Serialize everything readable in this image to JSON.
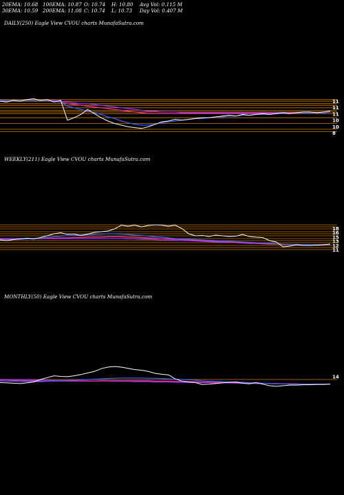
{
  "header": {
    "row1": [
      "20EMA: 10.68",
      "100EMA: 10.87",
      "O: 10.74",
      "H: 10.80",
      "Avg Vol: 0.115 M"
    ],
    "row2": [
      "30EMA: 10.59",
      "200EMA: 11.08",
      "C: 10.74",
      "L: 10.73",
      "Day Vol: 0.407 M"
    ]
  },
  "panels": {
    "daily": {
      "label": "DAILY(250) Eagle  View  CVOU charts MunafaSutra.com",
      "ticks": [
        "11",
        "11",
        "11",
        "10",
        "10",
        "8"
      ]
    },
    "weekly": {
      "label": "WEEKLY(211) Eagle  View  CVOU charts MunafaSutra.com",
      "ticks": [
        "18",
        "16",
        "15",
        "13",
        "12",
        "11"
      ]
    },
    "monthly": {
      "label": "MONTHLY(50) Eagle  View  CVOU charts MunafaSutra.com",
      "ticks": [
        "14"
      ]
    }
  },
  "colors": {
    "price": "#ffffff",
    "ema_fast": "#3366ff",
    "ema_slow": "#ff3399",
    "ema_long": "#9933ff",
    "level": "#cc7a00"
  },
  "chart_data": [
    {
      "type": "line",
      "panel": "daily",
      "ylim": [
        7,
        12
      ],
      "levels": [
        11.6,
        11.4,
        11.1,
        10.9,
        10.6,
        10.3,
        10.1,
        9.9,
        9.4,
        8.7,
        8.0,
        7.7
      ],
      "series": [
        {
          "key": "price",
          "values": [
            11.4,
            11.3,
            11.5,
            11.4,
            11.6,
            11.7,
            11.5,
            11.6,
            11.3,
            11.5,
            9.1,
            9.4,
            9.8,
            10.4,
            9.9,
            9.4,
            9.0,
            8.7,
            8.5,
            8.3,
            8.2,
            8.1,
            8.3,
            8.6,
            8.9,
            9.0,
            9.2,
            9.1,
            9.2,
            9.3,
            9.4,
            9.4,
            9.5,
            9.6,
            9.7,
            9.6,
            9.8,
            9.7,
            9.8,
            9.9,
            9.8,
            9.9,
            10.0,
            9.9,
            10.0,
            10.1,
            10.1,
            10.0,
            10.1,
            10.2
          ]
        },
        {
          "key": "ema_fast",
          "values": [
            11.5,
            11.5,
            11.5,
            11.5,
            11.5,
            11.5,
            11.5,
            11.5,
            11.4,
            11.3,
            10.8,
            10.6,
            10.4,
            10.2,
            10.0,
            9.8,
            9.5,
            9.3,
            9.0,
            8.8,
            8.6,
            8.5,
            8.5,
            8.6,
            8.8,
            8.9,
            9.0,
            9.1,
            9.2,
            9.3,
            9.3,
            9.4,
            9.5,
            9.5,
            9.6,
            9.6,
            9.7,
            9.7,
            9.8,
            9.8,
            9.8,
            9.9,
            9.9,
            9.9,
            10.0,
            10.0,
            10.0,
            10.0,
            10.0,
            10.1
          ]
        },
        {
          "key": "ema_slow",
          "values": [
            11.5,
            11.5,
            11.5,
            11.5,
            11.5,
            11.5,
            11.5,
            11.5,
            11.4,
            11.3,
            11.1,
            11.0,
            10.9,
            10.8,
            10.7,
            10.6,
            10.5,
            10.4,
            10.3,
            10.2,
            10.1,
            10.0,
            9.9,
            9.9,
            9.9,
            9.9,
            9.9,
            9.9,
            9.9,
            9.9,
            9.9,
            9.9,
            9.9,
            9.9,
            9.9,
            9.9,
            9.9,
            9.9,
            9.9,
            9.9,
            9.9,
            9.9,
            10.0,
            10.0,
            10.0,
            10.0,
            10.0,
            10.0,
            10.0,
            10.1
          ]
        },
        {
          "key": "ema_long",
          "values": [
            11.5,
            11.5,
            11.5,
            11.5,
            11.5,
            11.5,
            11.5,
            11.5,
            11.5,
            11.4,
            11.3,
            11.2,
            11.1,
            11.1,
            11.0,
            10.9,
            10.8,
            10.7,
            10.6,
            10.5,
            10.4,
            10.3,
            10.2,
            10.2,
            10.1,
            10.1,
            10.1,
            10.0,
            10.0,
            10.0,
            10.0,
            10.0,
            10.0,
            10.0,
            10.0,
            10.0,
            10.0,
            10.0,
            10.0,
            10.0,
            10.0,
            10.0,
            10.0,
            10.0,
            10.0,
            10.0,
            10.0,
            10.0,
            10.0,
            10.1
          ]
        }
      ]
    },
    {
      "type": "line",
      "panel": "weekly",
      "ylim": [
        10,
        19
      ],
      "levels": [
        18.6,
        18.0,
        17.4,
        16.6,
        16.0,
        15.4,
        14.6,
        14.0,
        13.4,
        12.6,
        12.0,
        11.4
      ],
      "series": [
        {
          "key": "price",
          "values": [
            14.2,
            14.0,
            14.3,
            14.5,
            14.7,
            14.5,
            14.9,
            15.4,
            16.0,
            16.3,
            15.8,
            15.9,
            15.5,
            15.9,
            16.4,
            16.6,
            16.8,
            17.4,
            18.5,
            18.2,
            18.5,
            18.0,
            18.4,
            18.6,
            18.5,
            18.2,
            18.5,
            17.5,
            16.0,
            15.4,
            15.5,
            15.2,
            15.6,
            15.4,
            15.2,
            15.3,
            15.8,
            15.2,
            15.0,
            14.9,
            14.0,
            13.6,
            12.2,
            12.4,
            12.8,
            12.6,
            12.6,
            12.7,
            12.8,
            13.0
          ]
        },
        {
          "key": "ema_fast",
          "values": [
            14.3,
            14.3,
            14.4,
            14.4,
            14.5,
            14.6,
            14.7,
            14.9,
            15.1,
            15.3,
            15.4,
            15.5,
            15.6,
            15.7,
            15.8,
            15.9,
            16.0,
            16.0,
            15.9,
            15.8,
            15.6,
            15.5,
            15.3,
            15.1,
            15.0,
            14.8,
            14.6,
            14.5,
            14.4,
            14.3,
            14.2,
            14.1,
            14.0,
            13.9,
            13.8,
            13.7,
            13.6,
            13.5,
            13.4,
            13.3,
            13.2,
            13.1,
            13.0,
            12.9,
            12.9,
            12.8,
            12.8,
            12.8,
            12.8,
            12.9
          ]
        },
        {
          "key": "ema_slow",
          "values": [
            14.5,
            14.5,
            14.5,
            14.5,
            14.6,
            14.6,
            14.6,
            14.7,
            14.7,
            14.8,
            14.8,
            14.9,
            14.9,
            15.0,
            15.0,
            15.0,
            15.1,
            15.1,
            15.1,
            15.0,
            15.0,
            14.9,
            14.8,
            14.7,
            14.6,
            14.5,
            14.4,
            14.3,
            14.2,
            14.1,
            14.0,
            13.9,
            13.8,
            13.7,
            13.6,
            13.5,
            13.4,
            13.3,
            13.2,
            13.1,
            13.0,
            13.0,
            12.9,
            12.9,
            12.8,
            12.8,
            12.8,
            12.8,
            12.8,
            12.9
          ]
        },
        {
          "key": "ema_long",
          "values": [
            14.6,
            14.6,
            14.6,
            14.6,
            14.6,
            14.6,
            14.6,
            14.6,
            14.6,
            14.6,
            14.6,
            14.6,
            14.6,
            14.6,
            14.6,
            14.6,
            14.6,
            14.6,
            14.6,
            14.5,
            14.5,
            14.4,
            14.4,
            14.3,
            14.2,
            14.2,
            14.1,
            14.0,
            14.0,
            13.9,
            13.8,
            13.7,
            13.6,
            13.5,
            13.5,
            13.4,
            13.3,
            13.2,
            13.2,
            13.1,
            13.0,
            13.0,
            12.9,
            12.9,
            12.9,
            12.8,
            12.8,
            12.8,
            12.8,
            12.9
          ]
        }
      ]
    },
    {
      "type": "line",
      "panel": "monthly",
      "ylim": [
        10,
        20
      ],
      "levels": [
        14.0
      ],
      "series": [
        {
          "key": "price",
          "values": [
            13.0,
            12.9,
            12.8,
            12.7,
            12.9,
            13.2,
            14.0,
            14.6,
            15.2,
            15.0,
            14.9,
            15.2,
            15.6,
            16.1,
            16.6,
            17.5,
            18.0,
            18.2,
            18.0,
            17.6,
            17.2,
            17.0,
            16.6,
            16.0,
            15.7,
            15.5,
            14.2,
            13.5,
            13.2,
            13.0,
            12.4,
            12.5,
            12.7,
            12.9,
            13.1,
            13.2,
            12.8,
            12.6,
            13.0,
            12.5,
            12.0,
            11.8,
            12.0,
            12.2,
            12.2,
            12.3,
            12.3,
            12.4,
            12.4,
            12.5
          ]
        },
        {
          "key": "ema_fast",
          "values": [
            13.5,
            13.4,
            13.4,
            13.3,
            13.3,
            13.3,
            13.3,
            13.4,
            13.5,
            13.6,
            13.7,
            13.8,
            13.9,
            14.0,
            14.1,
            14.2,
            14.3,
            14.4,
            14.5,
            14.5,
            14.5,
            14.5,
            14.4,
            14.4,
            14.3,
            14.2,
            14.1,
            14.0,
            13.9,
            13.8,
            13.6,
            13.5,
            13.4,
            13.3,
            13.2,
            13.2,
            13.1,
            13.0,
            12.9,
            12.8,
            12.7,
            12.6,
            12.6,
            12.5,
            12.5,
            12.5,
            12.5,
            12.5,
            12.5,
            12.5
          ]
        },
        {
          "key": "ema_slow",
          "values": [
            13.8,
            13.8,
            13.7,
            13.7,
            13.6,
            13.6,
            13.5,
            13.5,
            13.5,
            13.5,
            13.5,
            13.5,
            13.5,
            13.5,
            13.5,
            13.6,
            13.6,
            13.6,
            13.6,
            13.6,
            13.6,
            13.6,
            13.6,
            13.5,
            13.5,
            13.5,
            13.4,
            13.4,
            13.3,
            13.3,
            13.2,
            13.2,
            13.1,
            13.1,
            13.0,
            13.0,
            12.9,
            12.9,
            12.8,
            12.8,
            12.7,
            12.7,
            12.6,
            12.6,
            12.6,
            12.5,
            12.5,
            12.5,
            12.5,
            12.5
          ]
        },
        {
          "key": "ema_long",
          "values": [
            14.0,
            14.0,
            13.9,
            13.9,
            13.9,
            13.8,
            13.8,
            13.8,
            13.7,
            13.7,
            13.7,
            13.6,
            13.6,
            13.6,
            13.5,
            13.5,
            13.5,
            13.4,
            13.4,
            13.4,
            13.3,
            13.3,
            13.3,
            13.2,
            13.2,
            13.2,
            13.1,
            13.1,
            13.1,
            13.0,
            13.0,
            13.0,
            12.9,
            12.9,
            12.9,
            12.8,
            12.8,
            12.8,
            12.7,
            12.7,
            12.7,
            12.6,
            12.6,
            12.6,
            12.6,
            12.5,
            12.5,
            12.5,
            12.5,
            12.5
          ]
        }
      ]
    }
  ]
}
